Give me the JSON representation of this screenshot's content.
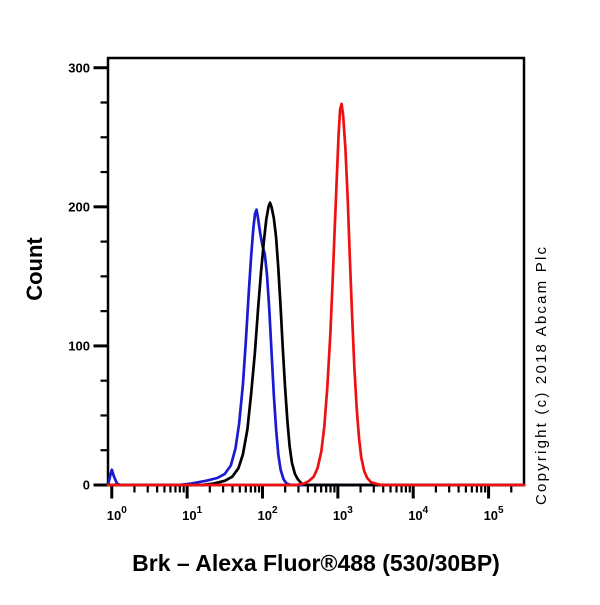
{
  "title": "Brk – Alexa Fluor®488 (530/30BP)",
  "copyright": "Copyright (c) 2018 Abcam Plc",
  "chart_data": {
    "type": "line",
    "subtype": "flow-cytometry-histogram",
    "title": "Brk – Alexa Fluor®488 (530/30BP)",
    "xlabel": "Brk – Alexa Fluor®488 (530/30BP)",
    "ylabel": "Count",
    "x_scale": "log10",
    "xlim_log10": [
      -0.05,
      5.47
    ],
    "x_decade_exponents": [
      0,
      1,
      2,
      3,
      4,
      5
    ],
    "x_tick_base": "10",
    "ylim": [
      0,
      307
    ],
    "y_major_ticks": [
      0,
      100,
      200,
      300
    ],
    "y_minor_step": 25,
    "grid": false,
    "legend_position": "none",
    "series": [
      {
        "name": "blue-curve",
        "color": "#1a1ad2",
        "peak_x": 80,
        "peak_count": 198,
        "points_log10x_count": [
          [
            -0.05,
            0
          ],
          [
            -0.02,
            7
          ],
          [
            0.0,
            11
          ],
          [
            0.03,
            6
          ],
          [
            0.07,
            1
          ],
          [
            0.12,
            0
          ],
          [
            0.9,
            0
          ],
          [
            1.05,
            1
          ],
          [
            1.25,
            3
          ],
          [
            1.4,
            5
          ],
          [
            1.5,
            8
          ],
          [
            1.58,
            14
          ],
          [
            1.64,
            26
          ],
          [
            1.69,
            44
          ],
          [
            1.74,
            72
          ],
          [
            1.78,
            104
          ],
          [
            1.82,
            140
          ],
          [
            1.85,
            165
          ],
          [
            1.88,
            185
          ],
          [
            1.9,
            195
          ],
          [
            1.92,
            198
          ],
          [
            1.94,
            192
          ],
          [
            1.97,
            181
          ],
          [
            2.0,
            172
          ],
          [
            2.03,
            166
          ],
          [
            2.06,
            151
          ],
          [
            2.09,
            126
          ],
          [
            2.12,
            96
          ],
          [
            2.15,
            65
          ],
          [
            2.18,
            40
          ],
          [
            2.21,
            22
          ],
          [
            2.24,
            11
          ],
          [
            2.28,
            4
          ],
          [
            2.32,
            1
          ],
          [
            2.38,
            0
          ],
          [
            5.47,
            0
          ]
        ]
      },
      {
        "name": "black-curve",
        "color": "#000000",
        "peak_x": 126,
        "peak_count": 203,
        "points_log10x_count": [
          [
            -0.05,
            0
          ],
          [
            1.2,
            0
          ],
          [
            1.35,
            1
          ],
          [
            1.5,
            3
          ],
          [
            1.6,
            6
          ],
          [
            1.68,
            12
          ],
          [
            1.74,
            22
          ],
          [
            1.8,
            40
          ],
          [
            1.85,
            66
          ],
          [
            1.9,
            96
          ],
          [
            1.94,
            126
          ],
          [
            1.98,
            153
          ],
          [
            2.02,
            176
          ],
          [
            2.05,
            191
          ],
          [
            2.08,
            200
          ],
          [
            2.1,
            203
          ],
          [
            2.12,
            200
          ],
          [
            2.15,
            192
          ],
          [
            2.18,
            178
          ],
          [
            2.21,
            156
          ],
          [
            2.24,
            128
          ],
          [
            2.27,
            98
          ],
          [
            2.3,
            70
          ],
          [
            2.33,
            46
          ],
          [
            2.36,
            28
          ],
          [
            2.39,
            16
          ],
          [
            2.43,
            8
          ],
          [
            2.47,
            4
          ],
          [
            2.52,
            1
          ],
          [
            2.58,
            0
          ],
          [
            5.47,
            0
          ]
        ]
      },
      {
        "name": "red-curve",
        "color": "#ee1111",
        "peak_x": 1070,
        "peak_count": 274,
        "points_log10x_count": [
          [
            -0.05,
            0
          ],
          [
            2.45,
            0
          ],
          [
            2.55,
            1
          ],
          [
            2.62,
            3
          ],
          [
            2.68,
            6
          ],
          [
            2.73,
            12
          ],
          [
            2.78,
            24
          ],
          [
            2.82,
            42
          ],
          [
            2.86,
            70
          ],
          [
            2.9,
            108
          ],
          [
            2.93,
            146
          ],
          [
            2.96,
            186
          ],
          [
            2.99,
            226
          ],
          [
            3.01,
            252
          ],
          [
            3.03,
            270
          ],
          [
            3.05,
            274
          ],
          [
            3.07,
            266
          ],
          [
            3.1,
            242
          ],
          [
            3.13,
            206
          ],
          [
            3.16,
            162
          ],
          [
            3.19,
            120
          ],
          [
            3.22,
            84
          ],
          [
            3.25,
            55
          ],
          [
            3.28,
            34
          ],
          [
            3.31,
            20
          ],
          [
            3.35,
            10
          ],
          [
            3.39,
            5
          ],
          [
            3.44,
            2
          ],
          [
            3.5,
            1
          ],
          [
            3.58,
            0
          ],
          [
            5.47,
            0
          ]
        ]
      }
    ]
  }
}
